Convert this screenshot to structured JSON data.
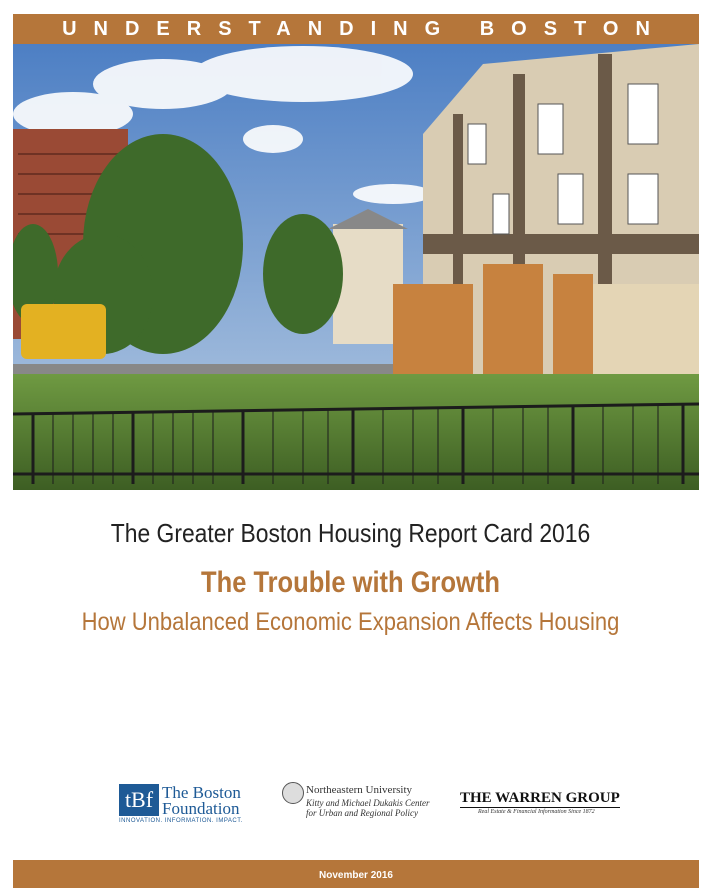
{
  "header": {
    "series_title": "UNDERSTANDING BOSTON"
  },
  "report": {
    "title": "The Greater Boston Housing Report Card 2016",
    "headline": "The Trouble with Growth",
    "subtitle": "How Unbalanced Economic Expansion Affects Housing"
  },
  "logos": {
    "boston_foundation": {
      "mark": "tBf",
      "name_line1": "The Boston",
      "name_line2": "Foundation",
      "tagline": "INNOVATION. INFORMATION. IMPACT."
    },
    "northeastern": {
      "name": "Northeastern University",
      "center_line1": "Kitty and Michael Dukakis Center",
      "center_line2": "for Urban and Regional Policy"
    },
    "warren": {
      "name": "THE WARREN GROUP",
      "tagline": "Real Estate & Financial Information Since 1872"
    }
  },
  "footer": {
    "date": "November 2016"
  }
}
